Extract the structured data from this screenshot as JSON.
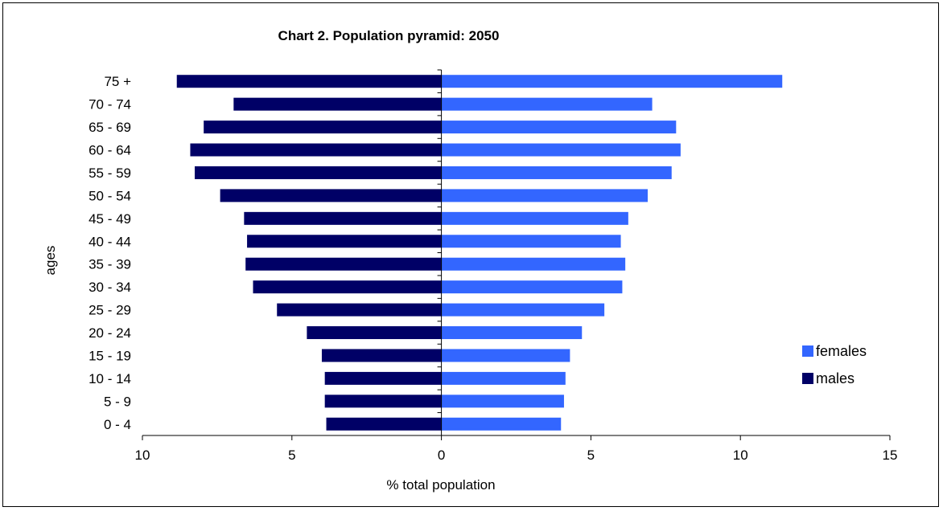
{
  "chart_data": {
    "type": "bar",
    "orientation": "horizontal",
    "title": "Chart 2. Population pyramid: 2050",
    "xlabel": "% total population",
    "ylabel": "ages",
    "categories": [
      "0  - 4",
      "5 - 9",
      "10 - 14",
      "15 - 19",
      "20 - 24",
      "25 - 29",
      "30 - 34",
      "35 - 39",
      "40 - 44",
      "45 - 49",
      "50 - 54",
      "55 - 59",
      "60 - 64",
      "65 - 69",
      "70 - 74",
      "75 +"
    ],
    "series": [
      {
        "name": "females",
        "color": "#3366ff",
        "values": [
          4.0,
          4.1,
          4.15,
          4.3,
          4.7,
          5.45,
          6.05,
          6.15,
          6.0,
          6.25,
          6.9,
          7.7,
          8.0,
          7.85,
          7.05,
          11.4
        ]
      },
      {
        "name": "males",
        "color": "#000066",
        "values": [
          -3.85,
          -3.9,
          -3.9,
          -4.0,
          -4.5,
          -5.5,
          -6.3,
          -6.55,
          -6.5,
          -6.6,
          -7.4,
          -8.25,
          -8.4,
          -7.95,
          -6.95,
          -8.85
        ]
      }
    ],
    "xlim": [
      -10,
      15
    ],
    "xticks": [
      -10,
      -5,
      0,
      5,
      10,
      15
    ],
    "xtick_labels": [
      "10",
      "5",
      "0",
      "5",
      "10",
      "15"
    ],
    "grid": false,
    "legend_position": "right"
  }
}
